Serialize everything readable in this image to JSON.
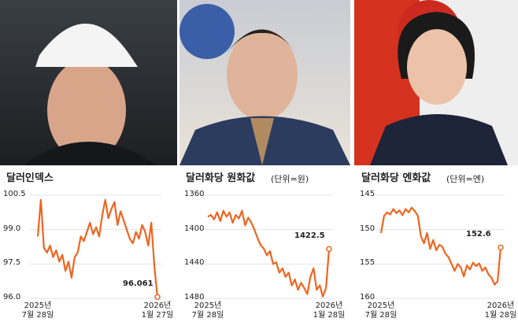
{
  "chart_data": [
    {
      "type": "line",
      "title": "달러인덱스",
      "color": "#f0651f",
      "ylim": [
        96.0,
        100.5
      ],
      "yticks": [
        100.5,
        {
          "value": 99.0,
          "label": "99.0"
        },
        97.5,
        {
          "value": 96.0,
          "label": "96.0"
        }
      ],
      "categories": [
        "2025년\n7월 28일",
        null,
        null,
        null,
        null,
        null,
        null,
        null,
        null,
        null,
        null,
        null,
        null,
        null,
        null,
        null,
        null,
        null,
        null,
        null,
        null,
        null,
        null,
        null,
        null,
        null,
        null,
        null,
        null,
        null,
        null,
        null,
        null,
        null,
        null,
        null,
        null,
        null,
        null,
        "2026년\n1월 27일"
      ],
      "values": [
        98.7,
        100.3,
        98.2,
        98.0,
        98.3,
        97.8,
        98.1,
        97.6,
        97.9,
        97.2,
        97.6,
        96.9,
        97.8,
        98.0,
        98.7,
        98.5,
        98.9,
        99.3,
        98.8,
        99.1,
        98.7,
        99.6,
        100.3,
        99.5,
        99.9,
        100.2,
        99.2,
        99.8,
        99.4,
        99.0,
        98.6,
        98.4,
        98.9,
        98.6,
        99.2,
        98.9,
        98.3,
        99.3,
        97.4,
        96.061
      ]
    },
    {
      "type": "line",
      "title": "달러화당 원화값",
      "subtitle": "(단위=원)",
      "color": "#f0651f",
      "ylim": [
        1480,
        1360
      ],
      "yticks": [
        1360,
        1400,
        1440,
        1480
      ],
      "categories": [
        "2025년\n7월 28일",
        null,
        null,
        null,
        null,
        null,
        null,
        null,
        null,
        null,
        null,
        null,
        null,
        null,
        null,
        null,
        null,
        null,
        null,
        null,
        null,
        null,
        null,
        null,
        null,
        null,
        null,
        null,
        null,
        null,
        null,
        null,
        null,
        null,
        null,
        null,
        null,
        null,
        null,
        "2026년\n1월 28일"
      ],
      "values": [
        1385,
        1383,
        1388,
        1380,
        1390,
        1378,
        1385,
        1380,
        1392,
        1383,
        1387,
        1378,
        1395,
        1386,
        1392,
        1400,
        1410,
        1418,
        1422,
        1430,
        1425,
        1440,
        1438,
        1450,
        1445,
        1455,
        1450,
        1465,
        1458,
        1470,
        1462,
        1468,
        1475,
        1455,
        1445,
        1470,
        1465,
        1478,
        1468,
        1422.5
      ]
    },
    {
      "type": "line",
      "title": "달러화당 엔화값",
      "subtitle": "(단위=엔)",
      "color": "#f0651f",
      "ylim": [
        160,
        145
      ],
      "yticks": [
        145,
        150,
        155,
        160
      ],
      "categories": [
        "2025년\n7월 28일",
        null,
        null,
        null,
        null,
        null,
        null,
        null,
        null,
        null,
        null,
        null,
        null,
        null,
        null,
        null,
        null,
        null,
        null,
        null,
        null,
        null,
        null,
        null,
        null,
        null,
        null,
        null,
        null,
        null,
        null,
        null,
        null,
        null,
        null,
        null,
        null,
        null,
        null,
        "2026년\n1월 28일"
      ],
      "values": [
        150.5,
        148,
        147.5,
        147.8,
        147,
        147.6,
        147.2,
        147.9,
        147,
        147.5,
        146.8,
        147.3,
        148,
        151,
        152,
        150.5,
        152.8,
        151.5,
        153,
        152.2,
        152.5,
        153.5,
        154,
        155,
        156,
        155,
        155.5,
        156.8,
        155.2,
        155.8,
        154.8,
        155.3,
        154.9,
        156,
        155.5,
        156.5,
        157,
        158,
        157.5,
        152.6
      ]
    }
  ]
}
